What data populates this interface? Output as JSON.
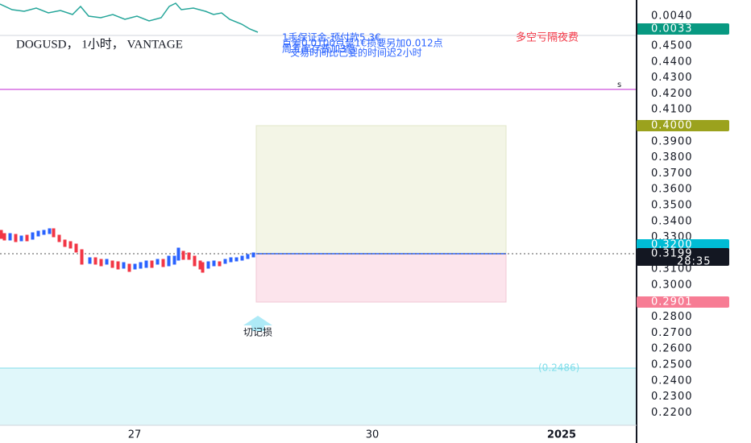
{
  "top_panel": {
    "axis_label": "0.0040",
    "badge": "0.0033"
  },
  "header": {
    "symbol": "DOGUSD， 1小时， VANTAGE",
    "notes": [
      "1手保证金-预付款5.3€",
      "点差0.0100点是1€损要另加0.012点",
      "周五库存费加3倍",
      "交易时间比已婴的时间迟2小时"
    ],
    "warning": "多空亏隔夜费",
    "marker": "s"
  },
  "price_axis": {
    "ticks": [
      "0.4500",
      "0.4400",
      "0.4300",
      "0.4200",
      "0.4100",
      "0.3900",
      "0.3800",
      "0.3700",
      "0.3600",
      "0.3500",
      "0.3400",
      "0.3300",
      "0.3100",
      "0.3000",
      "0.2800",
      "0.2700",
      "0.2600",
      "0.2500",
      "0.2400",
      "0.2300",
      "0.2200"
    ],
    "target_badge": "0.4000",
    "entry_badge": "0.3200",
    "price_badge": "0.3199",
    "countdown": "28:35",
    "stop_badge": "0.2901"
  },
  "annotations": {
    "arrow_label": "切记损",
    "level_label": "(0.2486)"
  },
  "time_axis": [
    "27",
    "30",
    "2025"
  ]
}
